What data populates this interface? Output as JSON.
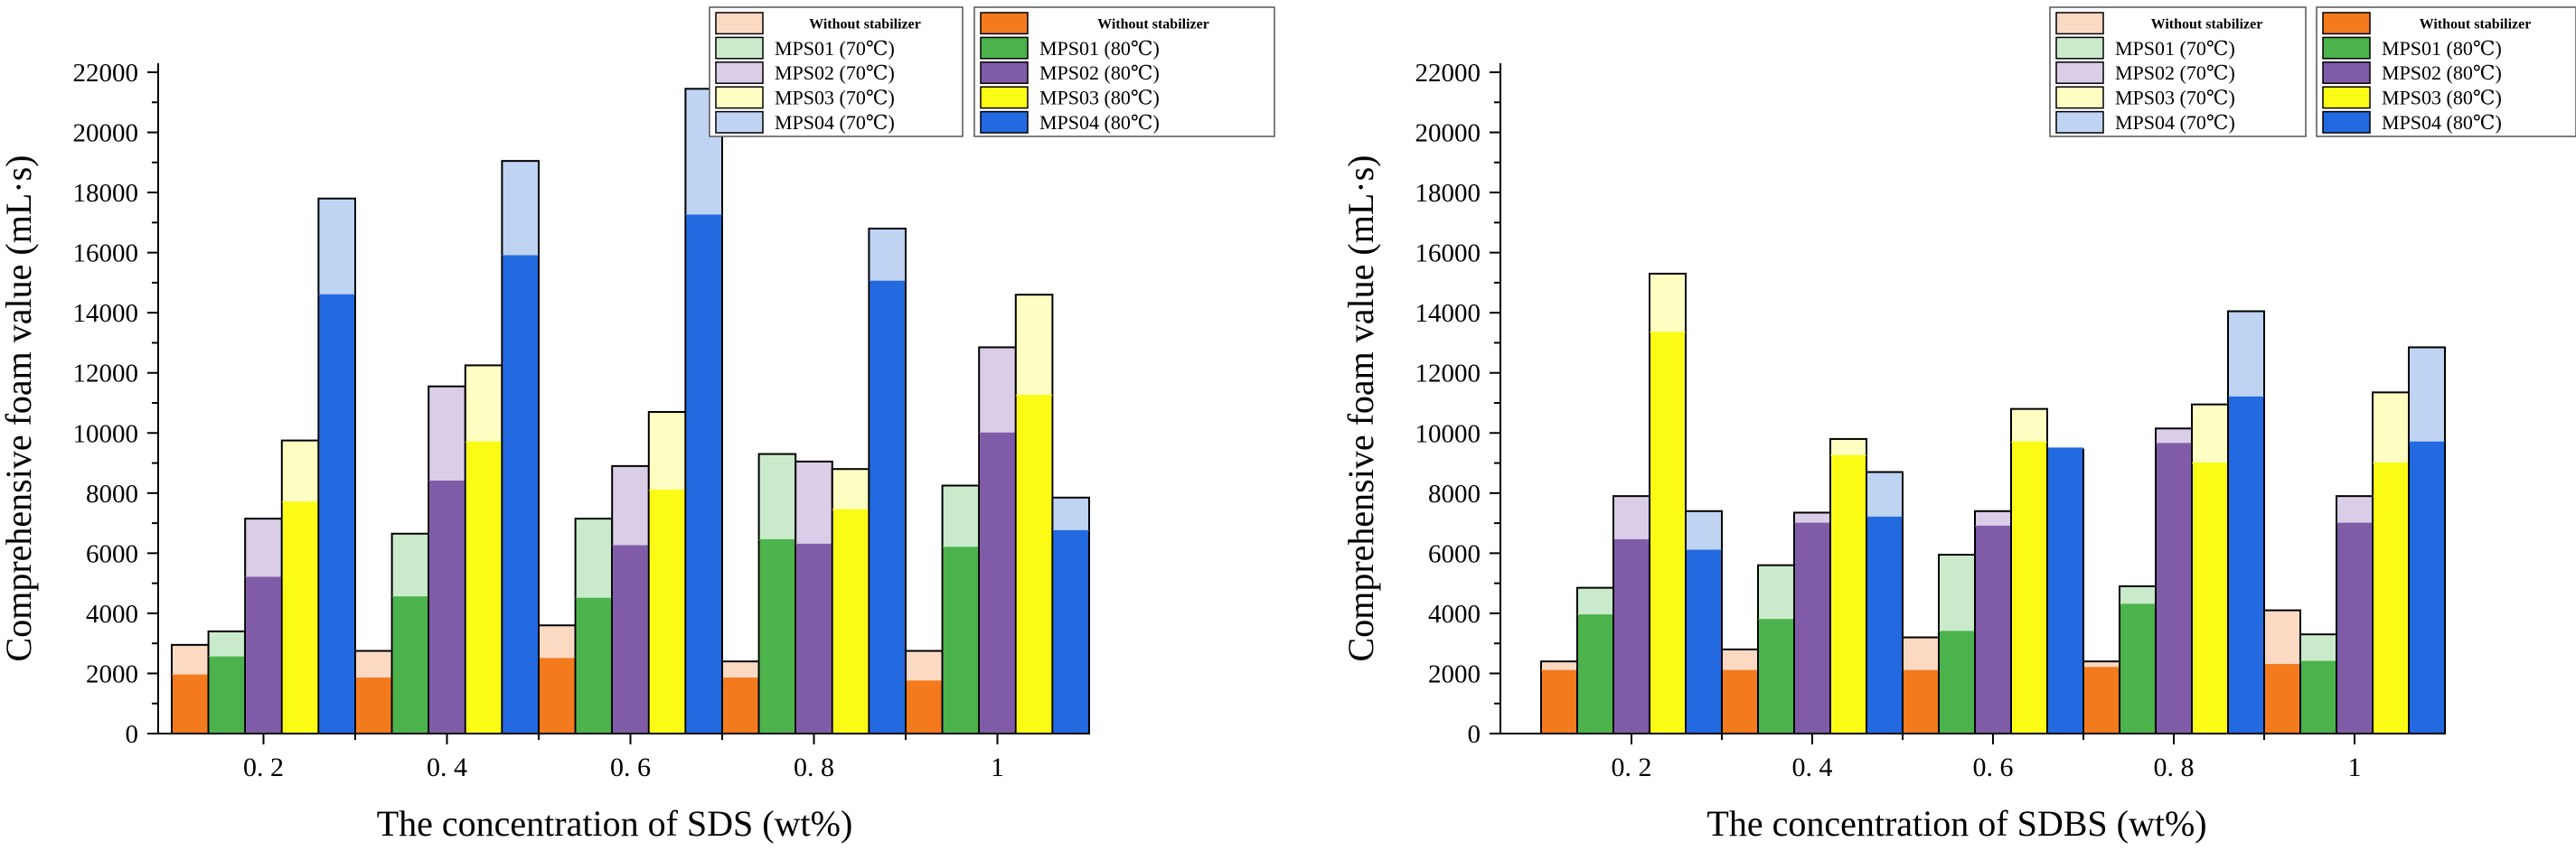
{
  "colors": {
    "Without stabilizer": {
      "light": "#fbd9c3",
      "dark": "#f47a1e"
    },
    "MPS01": {
      "light": "#c9ebcb",
      "dark": "#4cb24c"
    },
    "MPS02": {
      "light": "#d9cde7",
      "dark": "#805ca8"
    },
    "MPS03": {
      "light": "#fefdc2",
      "dark": "#fbfb16"
    },
    "MPS04": {
      "light": "#bfd3f3",
      "dark": "#2369e0"
    }
  },
  "chart_data": [
    {
      "type": "bar",
      "title": "",
      "xlabel": "The concentration of SDS (wt%)",
      "ylabel": "Comprehensive foam value (mL·s)",
      "ylim": [
        0,
        22000
      ],
      "yticks": [
        0,
        2000,
        4000,
        6000,
        8000,
        10000,
        12000,
        14000,
        16000,
        18000,
        20000,
        22000
      ],
      "categories": [
        "0. 2",
        "0. 4",
        "0. 6",
        "0. 8",
        "1"
      ],
      "legend_position": "top-right",
      "legend_left": [
        "Without stabilizer",
        "MPS01 (70℃)",
        "MPS02 (70℃)",
        "MPS03 (70℃)",
        "MPS04 (70℃)"
      ],
      "legend_right": [
        "Without stabilizer",
        "MPS01 (80℃)",
        "MPS02 (80℃)",
        "MPS03 (80℃)",
        "MPS04 (80℃)"
      ],
      "series": [
        {
          "name": "Without stabilizer",
          "values_70C": [
            2950,
            2750,
            3600,
            2400,
            2750
          ],
          "values_80C": [
            1950,
            1850,
            2500,
            1850,
            1750
          ]
        },
        {
          "name": "MPS01",
          "values_70C": [
            3400,
            6650,
            7150,
            9300,
            8250
          ],
          "values_80C": [
            2550,
            4550,
            4500,
            6450,
            6200
          ]
        },
        {
          "name": "MPS02",
          "values_70C": [
            7150,
            11550,
            8900,
            9050,
            12850
          ],
          "values_80C": [
            5200,
            8400,
            6250,
            6300,
            10000
          ]
        },
        {
          "name": "MPS03",
          "values_70C": [
            9750,
            12250,
            10700,
            8800,
            14600
          ],
          "values_80C": [
            7700,
            9700,
            8100,
            7450,
            11250
          ]
        },
        {
          "name": "MPS04",
          "values_70C": [
            17800,
            19050,
            21450,
            16800,
            7850
          ],
          "values_80C": [
            14600,
            15900,
            17250,
            15050,
            6750
          ]
        }
      ]
    },
    {
      "type": "bar",
      "title": "",
      "xlabel": "The concentration of SDBS (wt%)",
      "ylabel": "Comprehensive foam value (mL·s)",
      "ylim": [
        0,
        22000
      ],
      "yticks": [
        0,
        2000,
        4000,
        6000,
        8000,
        10000,
        12000,
        14000,
        16000,
        18000,
        20000,
        22000
      ],
      "categories": [
        "0. 2",
        "0. 4",
        "0. 6",
        "0. 8",
        "1"
      ],
      "legend_position": "top-right",
      "legend_left": [
        "Without stabilizer",
        "MPS01 (70℃)",
        "MPS02 (70℃)",
        "MPS03 (70℃)",
        "MPS04 (70℃)"
      ],
      "legend_right": [
        "Without stabilizer",
        "MPS01 (80℃)",
        "MPS02 (80℃)",
        "MPS03 (80℃)",
        "MPS04 (80℃)"
      ],
      "series": [
        {
          "name": "Without stabilizer",
          "values_70C": [
            2400,
            2800,
            3200,
            2400,
            4100
          ],
          "values_80C": [
            2100,
            2100,
            2100,
            2200,
            2300
          ]
        },
        {
          "name": "MPS01",
          "values_70C": [
            4850,
            5600,
            5950,
            4900,
            3300
          ],
          "values_80C": [
            3950,
            3800,
            3400,
            4300,
            2400
          ]
        },
        {
          "name": "MPS02",
          "values_70C": [
            7900,
            7350,
            7400,
            10150,
            7900
          ],
          "values_80C": [
            6450,
            7000,
            6900,
            9650,
            7000
          ]
        },
        {
          "name": "MPS03",
          "values_70C": [
            15300,
            9800,
            10800,
            10950,
            11350
          ],
          "values_80C": [
            13350,
            9250,
            9700,
            9000,
            9000
          ]
        },
        {
          "name": "MPS04",
          "values_70C": [
            7400,
            8700,
            9450,
            14050,
            12850
          ],
          "values_80C": [
            6100,
            7200,
            9500,
            11200,
            9700
          ]
        }
      ]
    }
  ]
}
